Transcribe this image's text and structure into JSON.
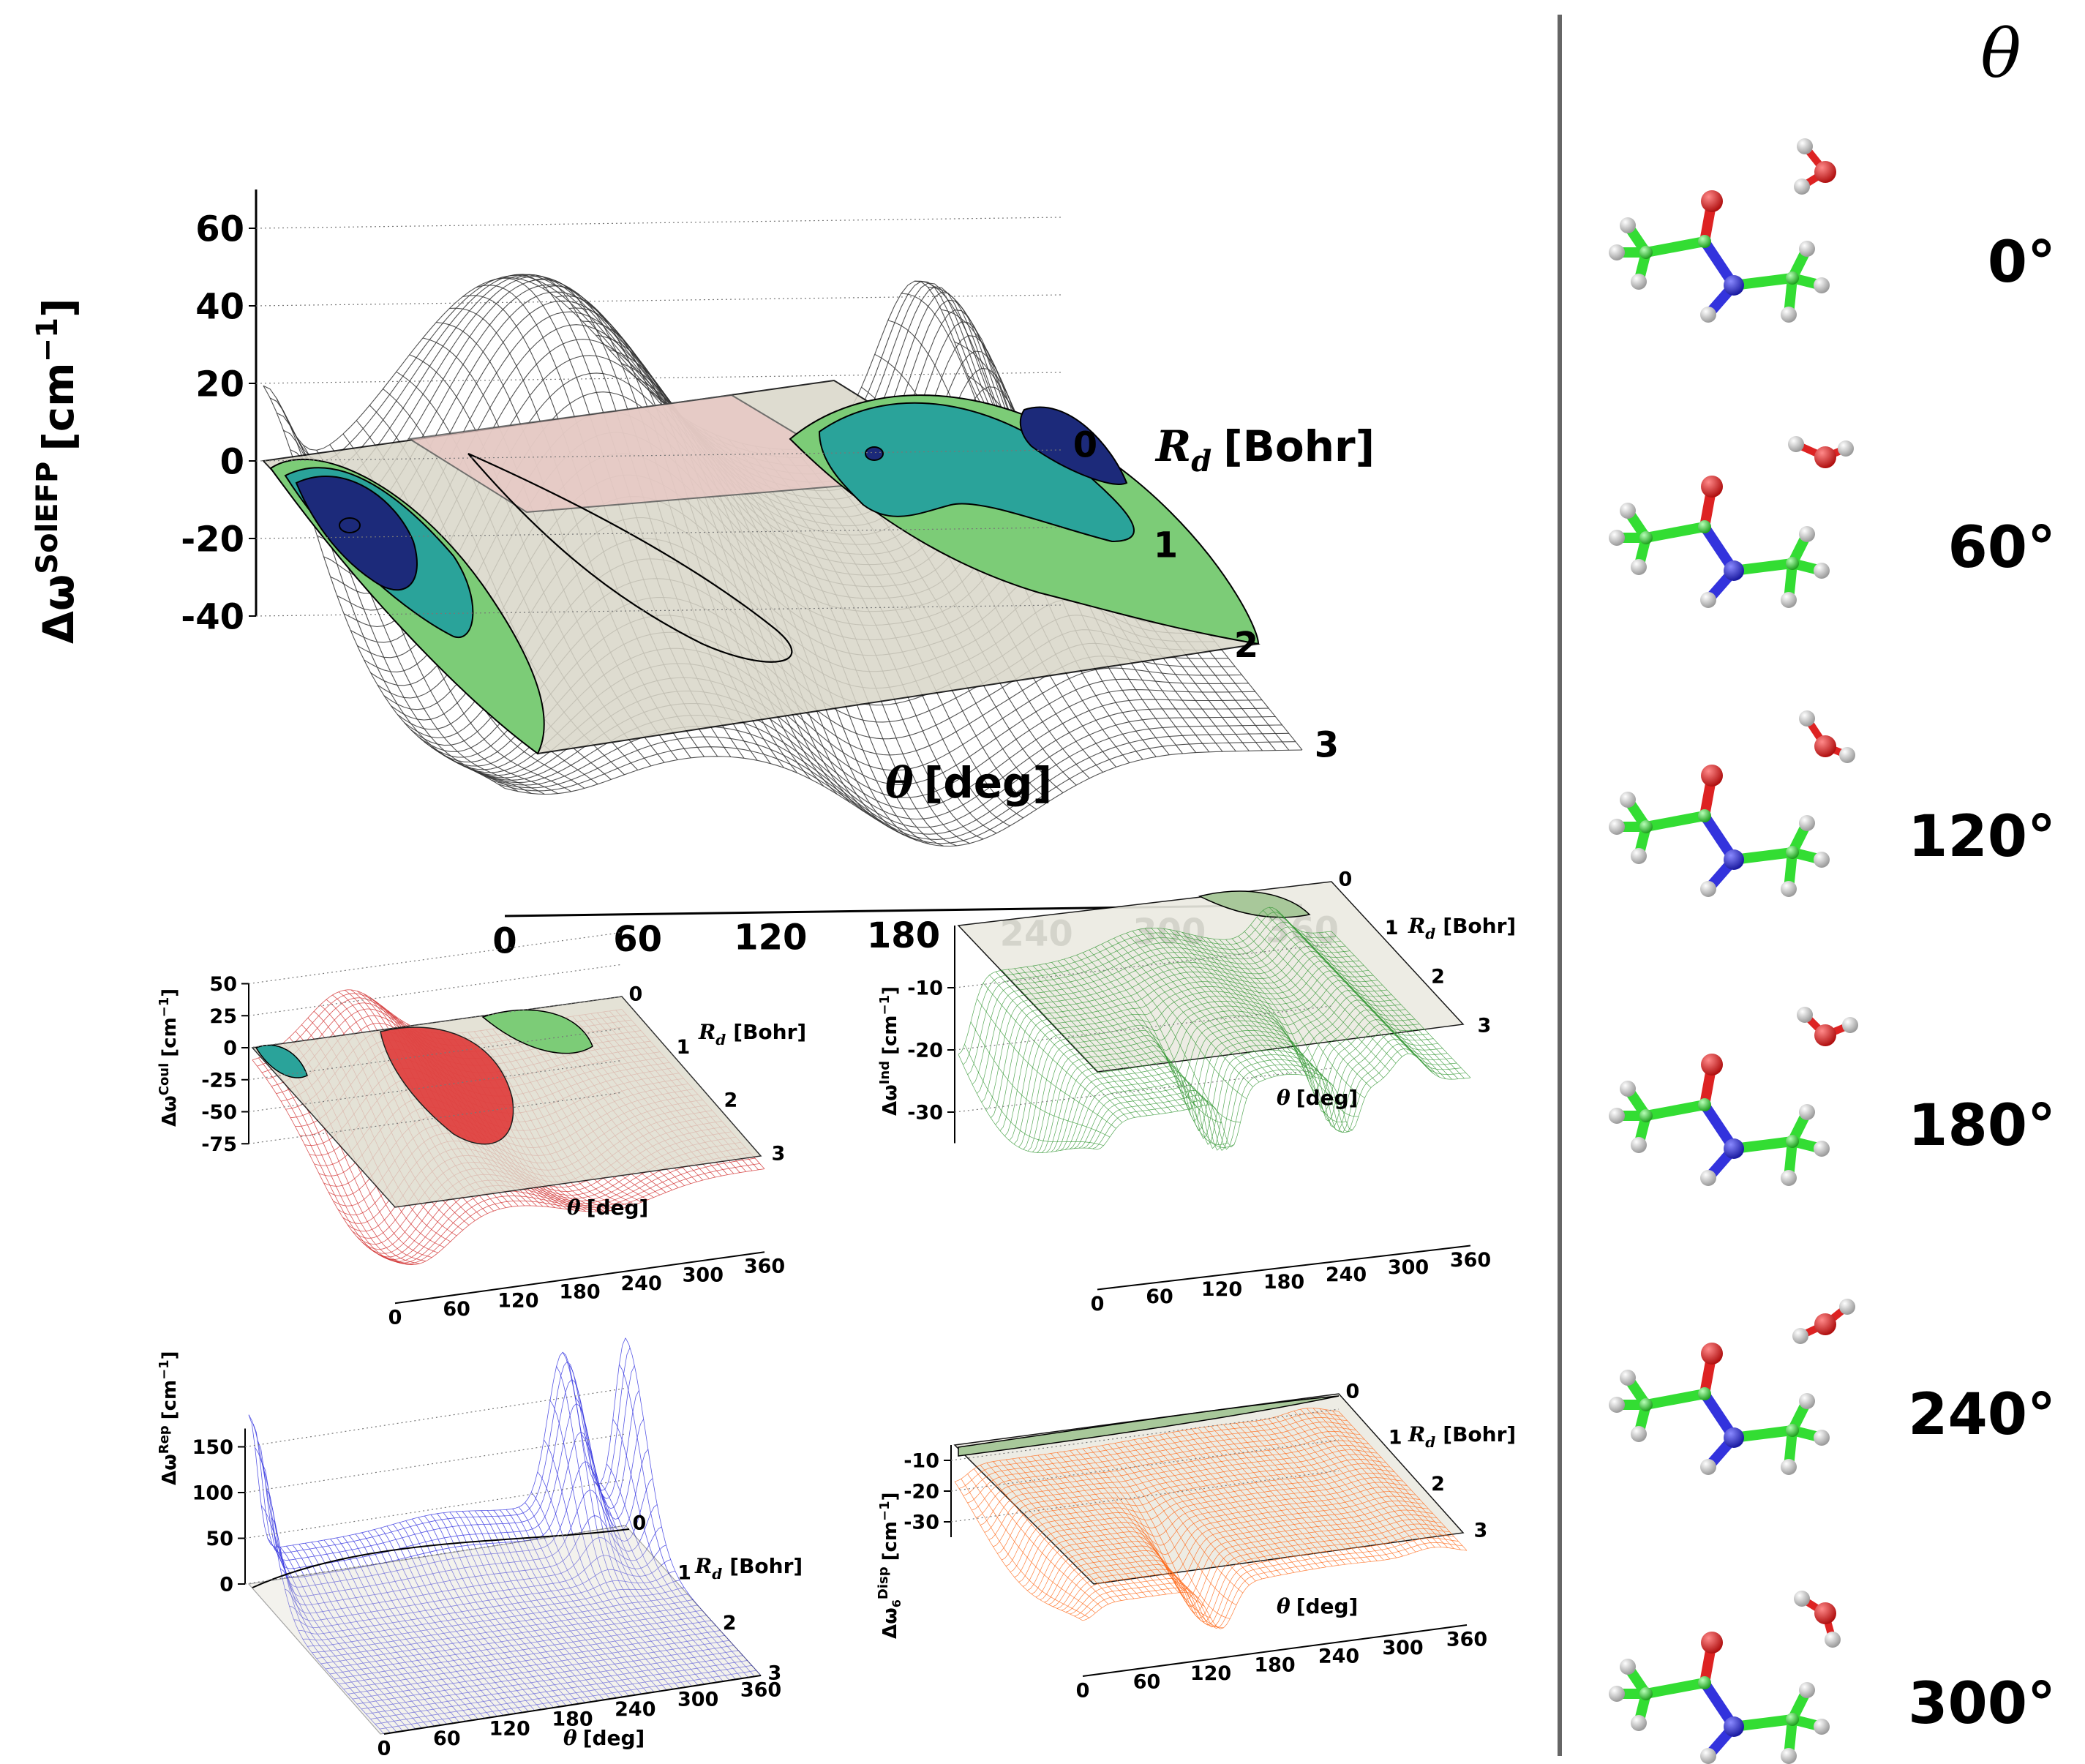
{
  "chart_data": [
    {
      "type": "surface",
      "panel": "total",
      "zlabel": "Δω^SolEFP [cm⁻¹]",
      "zlabel_base": "Δω",
      "zlabel_sup": "SolEFP",
      "zlabel_units": "[cm",
      "zlabel_units_sup": "−1",
      "zlabel_units_close": "]",
      "xlabel_var": "θ",
      "xlabel_unit": "[deg]",
      "ylabel_var": "R",
      "ylabel_sub": "d",
      "ylabel_unit": "[Bohr]",
      "x_ticks": [
        "0",
        "60",
        "120",
        "180",
        "240",
        "300",
        "360"
      ],
      "y_ticks": [
        "0",
        "1",
        "2",
        "3"
      ],
      "z_ticks": [
        "60",
        "40",
        "20",
        "0",
        "-20",
        "-40"
      ],
      "zlim": [
        -40,
        70
      ],
      "color": "#333333",
      "contour_colors": [
        "#1c2a7a",
        "#2aa39a",
        "#7ccc77",
        "#d9d6c8",
        "#e8c8c4"
      ]
    },
    {
      "type": "surface",
      "panel": "coulomb",
      "zlabel_base": "Δω",
      "zlabel_sup": "Coul",
      "zlabel_units": "[cm",
      "zlabel_units_sup": "−1",
      "zlabel_units_close": "]",
      "xlabel_var": "θ",
      "xlabel_unit": "[deg]",
      "ylabel_var": "R",
      "ylabel_sub": "d",
      "ylabel_unit": "[Bohr]",
      "x_ticks": [
        "0",
        "60",
        "120",
        "180",
        "240",
        "300",
        "360"
      ],
      "y_ticks": [
        "0",
        "1",
        "2",
        "3"
      ],
      "z_ticks": [
        "50",
        "25",
        "0",
        "-25",
        "-50",
        "-75"
      ],
      "zlim": [
        -75,
        50
      ],
      "color": "#d43a3a"
    },
    {
      "type": "surface",
      "panel": "induction",
      "zlabel_base": "Δω",
      "zlabel_sup": "Ind",
      "zlabel_units": "[cm",
      "zlabel_units_sup": "−1",
      "zlabel_units_close": "]",
      "xlabel_var": "θ",
      "xlabel_unit": "[deg]",
      "ylabel_var": "R",
      "ylabel_sub": "d",
      "ylabel_unit": "[Bohr]",
      "x_ticks": [
        "0",
        "60",
        "120",
        "180",
        "240",
        "300",
        "360"
      ],
      "y_ticks": [
        "0",
        "1",
        "2",
        "3"
      ],
      "z_ticks": [
        "-10",
        "-20",
        "-30"
      ],
      "zlim": [
        -35,
        0
      ],
      "color": "#3a9a3a"
    },
    {
      "type": "surface",
      "panel": "repulsion",
      "zlabel_base": "Δω",
      "zlabel_sup": "Rep",
      "zlabel_units": "[cm",
      "zlabel_units_sup": "−1",
      "zlabel_units_close": "]",
      "xlabel_var": "θ",
      "xlabel_unit": "[deg]",
      "ylabel_var": "R",
      "ylabel_sub": "d",
      "ylabel_unit": "[Bohr]",
      "x_ticks": [
        "0",
        "60",
        "120",
        "180",
        "240",
        "300",
        "360"
      ],
      "y_ticks": [
        "0",
        "1",
        "2",
        "3"
      ],
      "z_ticks": [
        "150",
        "100",
        "50",
        "0"
      ],
      "zlim": [
        0,
        170
      ],
      "color": "#3a3ae0"
    },
    {
      "type": "surface",
      "panel": "dispersion",
      "zlabel_base": "Δω",
      "zlabel_sub": "6",
      "zlabel_sup": "Disp",
      "zlabel_units": "[cm",
      "zlabel_units_sup": "−1",
      "zlabel_units_close": "]",
      "xlabel_var": "θ",
      "xlabel_unit": "[deg]",
      "ylabel_var": "R",
      "ylabel_sub": "d",
      "ylabel_unit": "[Bohr]",
      "x_ticks": [
        "0",
        "60",
        "120",
        "180",
        "240",
        "300",
        "360"
      ],
      "y_ticks": [
        "0",
        "1",
        "2",
        "3"
      ],
      "z_ticks": [
        "-10",
        "-20",
        "-30"
      ],
      "zlim": [
        -35,
        -5
      ],
      "color": "#ff6a1a"
    }
  ],
  "structures": {
    "header": "θ",
    "angles": [
      "0°",
      "60°",
      "120°",
      "180°",
      "240°",
      "300°"
    ],
    "atom_colors": {
      "carbon": "#33dd33",
      "oxygen": "#dd2222",
      "nitrogen": "#3333dd",
      "hydrogen": "#cccccc"
    }
  }
}
